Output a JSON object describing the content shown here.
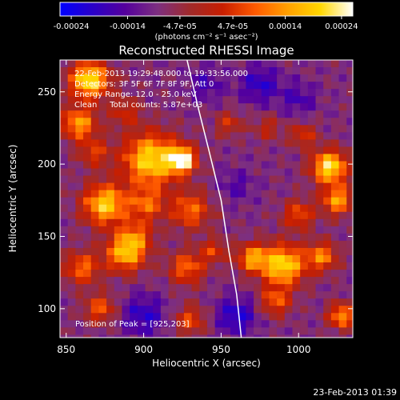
{
  "chart_data": {
    "type": "heatmap",
    "title": "Reconstructed RHESSI Image",
    "xlabel": "Heliocentric X (arcsec)",
    "ylabel": "Heliocentric Y (arcsec)",
    "xlim": [
      846,
      1035
    ],
    "ylim": [
      80,
      272
    ],
    "xticks": [
      850,
      900,
      950,
      1000
    ],
    "xtick_labels": [
      "850",
      "900",
      "950",
      "1000"
    ],
    "yticks": [
      100,
      150,
      200,
      250
    ],
    "ytick_labels": [
      "100",
      "150",
      "200",
      "250"
    ],
    "colorbar": {
      "range": [
        -0.00026,
        0.00026
      ],
      "ticks": [
        -0.00024,
        -0.00014,
        -4.7e-05,
        4.7e-05,
        0.00014,
        0.00024
      ],
      "tick_labels": [
        "-0.00024",
        "-0.00014",
        "-4.7e-05",
        "4.7e-05",
        "0.00014",
        "0.00024"
      ],
      "unit_label": "(photons cm⁻² s⁻¹ asec⁻²)",
      "colormap": [
        "#0000ff",
        "#2a00c8",
        "#55009c",
        "#7d2f80",
        "#a02a2a",
        "#c81e00",
        "#ff5a00",
        "#ffa000",
        "#ffd700",
        "#ffffff"
      ]
    },
    "annotations": [
      "22-Feb-2013 19:29:48.000 to 19:33:56.000",
      "Detectors: 3F 5F 6F 7F 8F 9F, Att 0",
      "Energy Range: 12.0 - 25.0 keV",
      "Clean     Total counts: 5.87e+03"
    ],
    "peak_label": "Position of Peak = [925,203]",
    "peak_position": [
      925,
      203
    ],
    "limb": [
      [
        928,
        272
      ],
      [
        935,
        240
      ],
      [
        942,
        210
      ],
      [
        950,
        175
      ],
      [
        955,
        140
      ],
      [
        960,
        110
      ],
      [
        963,
        80
      ]
    ],
    "blobs": [
      {
        "x": 865,
        "y": 258,
        "amp": 0.95,
        "s": 9
      },
      {
        "x": 858,
        "y": 228,
        "amp": 0.7,
        "s": 8
      },
      {
        "x": 888,
        "y": 236,
        "amp": 0.35,
        "s": 7
      },
      {
        "x": 905,
        "y": 203,
        "amp": 0.9,
        "s": 13
      },
      {
        "x": 925,
        "y": 203,
        "amp": 1.0,
        "s": 6
      },
      {
        "x": 868,
        "y": 208,
        "amp": 0.4,
        "s": 7
      },
      {
        "x": 875,
        "y": 172,
        "amp": 0.85,
        "s": 10
      },
      {
        "x": 902,
        "y": 172,
        "amp": 0.5,
        "s": 8
      },
      {
        "x": 930,
        "y": 168,
        "amp": 0.55,
        "s": 9
      },
      {
        "x": 895,
        "y": 150,
        "amp": 0.45,
        "s": 8
      },
      {
        "x": 888,
        "y": 138,
        "amp": 0.75,
        "s": 9
      },
      {
        "x": 860,
        "y": 128,
        "amp": 0.55,
        "s": 8
      },
      {
        "x": 928,
        "y": 128,
        "amp": 0.55,
        "s": 8
      },
      {
        "x": 990,
        "y": 130,
        "amp": 0.9,
        "s": 10
      },
      {
        "x": 970,
        "y": 135,
        "amp": 0.65,
        "s": 7
      },
      {
        "x": 1015,
        "y": 136,
        "amp": 0.6,
        "s": 7
      },
      {
        "x": 1020,
        "y": 198,
        "amp": 0.95,
        "s": 8
      },
      {
        "x": 1025,
        "y": 175,
        "amp": 0.7,
        "s": 7
      },
      {
        "x": 1000,
        "y": 165,
        "amp": 0.5,
        "s": 7
      },
      {
        "x": 1003,
        "y": 220,
        "amp": 0.4,
        "s": 6
      },
      {
        "x": 985,
        "y": 105,
        "amp": 0.5,
        "s": 7
      },
      {
        "x": 1028,
        "y": 95,
        "amp": 0.7,
        "s": 6
      },
      {
        "x": 872,
        "y": 100,
        "amp": 0.5,
        "s": 7
      },
      {
        "x": 930,
        "y": 92,
        "amp": 0.45,
        "s": 7
      },
      {
        "x": 955,
        "y": 228,
        "amp": 0.35,
        "s": 6
      },
      {
        "x": 980,
        "y": 225,
        "amp": 0.3,
        "s": 6
      },
      {
        "x": 945,
        "y": 140,
        "amp": 0.4,
        "s": 6
      },
      {
        "x": 900,
        "y": 95,
        "amp": -0.35,
        "s": 10
      },
      {
        "x": 960,
        "y": 95,
        "amp": -0.4,
        "s": 9
      },
      {
        "x": 975,
        "y": 255,
        "amp": -0.35,
        "s": 9
      },
      {
        "x": 940,
        "y": 255,
        "amp": -0.25,
        "s": 8
      },
      {
        "x": 1000,
        "y": 245,
        "amp": -0.25,
        "s": 8
      },
      {
        "x": 960,
        "y": 185,
        "amp": -0.2,
        "s": 8
      }
    ]
  },
  "footer": {
    "timestamp": "23-Feb-2013 01:39"
  }
}
